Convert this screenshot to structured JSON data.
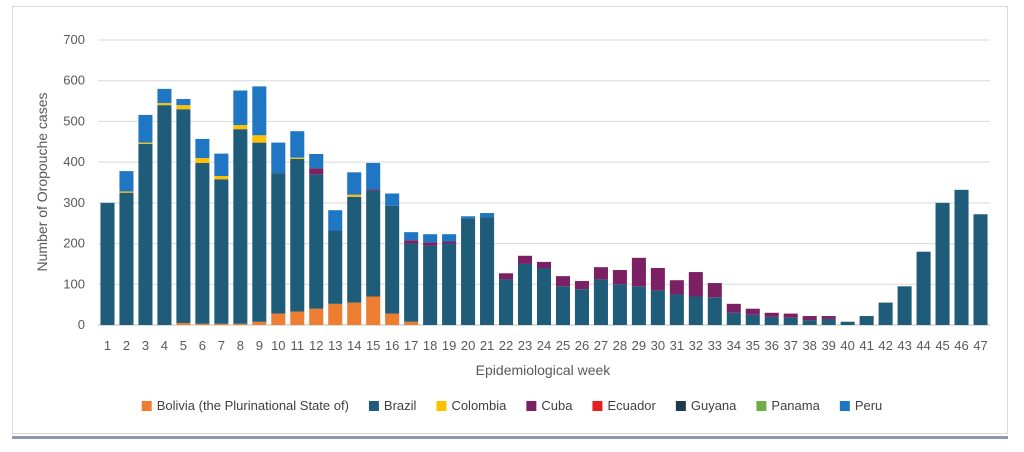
{
  "chart_data": {
    "type": "bar",
    "stacked": true,
    "title": "",
    "xlabel": "Epidemiological week",
    "ylabel": "Number of Oropouche cases",
    "ylim": [
      0,
      700
    ],
    "yticks": [
      0,
      100,
      200,
      300,
      400,
      500,
      600,
      700
    ],
    "grid": true,
    "legend_position": "bottom",
    "categories": [
      "1",
      "2",
      "3",
      "4",
      "5",
      "6",
      "7",
      "8",
      "9",
      "10",
      "11",
      "12",
      "13",
      "14",
      "15",
      "16",
      "17",
      "18",
      "19",
      "20",
      "21",
      "22",
      "23",
      "24",
      "25",
      "26",
      "27",
      "28",
      "29",
      "30",
      "31",
      "32",
      "33",
      "34",
      "35",
      "36",
      "37",
      "38",
      "39",
      "40",
      "41",
      "42",
      "43",
      "44",
      "45",
      "46",
      "47"
    ],
    "series": [
      {
        "name": "Bolivia (the Plurinational State of)",
        "color": "#ed7d31",
        "values": [
          0,
          0,
          0,
          0,
          5,
          3,
          3,
          3,
          8,
          28,
          33,
          40,
          52,
          55,
          70,
          28,
          8,
          0,
          0,
          0,
          0,
          0,
          0,
          0,
          0,
          0,
          0,
          0,
          0,
          0,
          0,
          0,
          0,
          0,
          0,
          0,
          0,
          0,
          0,
          0,
          0,
          0,
          0,
          0,
          0,
          0,
          0
        ]
      },
      {
        "name": "Brazil",
        "color": "#1f5c7a",
        "values": [
          300,
          325,
          445,
          540,
          525,
          395,
          355,
          478,
          440,
          345,
          375,
          330,
          180,
          260,
          260,
          265,
          192,
          195,
          200,
          262,
          265,
          112,
          150,
          140,
          95,
          88,
          112,
          100,
          95,
          85,
          75,
          70,
          68,
          30,
          25,
          20,
          18,
          12,
          15,
          8,
          22,
          55,
          95,
          180,
          300,
          332,
          272
        ]
      },
      {
        "name": "Colombia",
        "color": "#ffc000",
        "values": [
          0,
          3,
          3,
          5,
          10,
          12,
          8,
          10,
          18,
          0,
          3,
          0,
          0,
          5,
          0,
          0,
          0,
          0,
          0,
          0,
          0,
          0,
          0,
          0,
          0,
          0,
          0,
          0,
          0,
          0,
          0,
          0,
          0,
          0,
          0,
          0,
          0,
          0,
          0,
          0,
          0,
          0,
          0,
          0,
          0,
          0,
          0
        ]
      },
      {
        "name": "Cuba",
        "color": "#7a2063",
        "values": [
          0,
          0,
          0,
          0,
          0,
          0,
          0,
          0,
          0,
          0,
          0,
          15,
          0,
          0,
          3,
          0,
          8,
          8,
          5,
          0,
          0,
          15,
          20,
          15,
          25,
          20,
          30,
          35,
          70,
          55,
          35,
          60,
          35,
          22,
          15,
          10,
          10,
          10,
          7,
          0,
          0,
          0,
          0,
          0,
          0,
          0,
          0
        ]
      },
      {
        "name": "Ecuador",
        "color": "#e81f1f",
        "values": [
          0,
          0,
          0,
          0,
          0,
          0,
          0,
          0,
          0,
          0,
          0,
          0,
          0,
          0,
          0,
          0,
          0,
          0,
          0,
          0,
          0,
          0,
          0,
          0,
          0,
          0,
          0,
          0,
          0,
          0,
          0,
          0,
          0,
          0,
          0,
          0,
          0,
          0,
          0,
          0,
          0,
          0,
          0,
          0,
          0,
          0,
          0
        ]
      },
      {
        "name": "Guyana",
        "color": "#1c3a4a",
        "values": [
          0,
          0,
          0,
          0,
          0,
          0,
          0,
          0,
          0,
          0,
          0,
          0,
          0,
          0,
          0,
          0,
          0,
          0,
          0,
          0,
          0,
          0,
          0,
          0,
          0,
          0,
          0,
          0,
          0,
          0,
          0,
          0,
          0,
          0,
          0,
          0,
          0,
          0,
          0,
          0,
          0,
          0,
          0,
          0,
          0,
          0,
          0
        ]
      },
      {
        "name": "Panama",
        "color": "#70ad47",
        "values": [
          0,
          0,
          0,
          0,
          0,
          0,
          0,
          0,
          0,
          0,
          0,
          0,
          0,
          0,
          0,
          0,
          0,
          0,
          0,
          0,
          0,
          0,
          0,
          0,
          0,
          0,
          0,
          0,
          0,
          0,
          0,
          0,
          0,
          0,
          0,
          0,
          0,
          0,
          0,
          0,
          0,
          0,
          0,
          0,
          0,
          0,
          0
        ]
      },
      {
        "name": "Peru",
        "color": "#1f77c4",
        "values": [
          0,
          50,
          68,
          35,
          15,
          47,
          55,
          85,
          120,
          75,
          65,
          35,
          50,
          55,
          65,
          30,
          20,
          20,
          18,
          5,
          10,
          0,
          0,
          0,
          0,
          0,
          0,
          0,
          0,
          0,
          0,
          0,
          0,
          0,
          0,
          0,
          0,
          0,
          0,
          0,
          0,
          0,
          0,
          0,
          0,
          0,
          0
        ]
      }
    ]
  }
}
